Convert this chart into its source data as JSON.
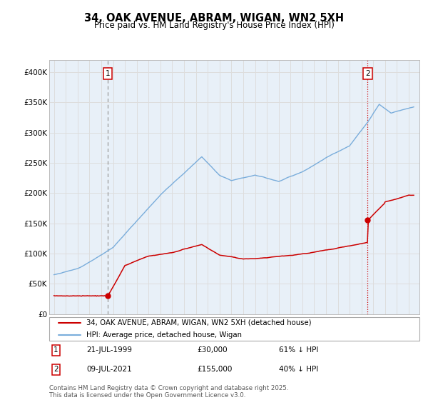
{
  "title_line1": "34, OAK AVENUE, ABRAM, WIGAN, WN2 5XH",
  "title_line2": "Price paid vs. HM Land Registry's House Price Index (HPI)",
  "ylim": [
    0,
    420000
  ],
  "yticks": [
    0,
    50000,
    100000,
    150000,
    200000,
    250000,
    300000,
    350000,
    400000
  ],
  "ytick_labels": [
    "£0",
    "£50K",
    "£100K",
    "£150K",
    "£200K",
    "£250K",
    "£300K",
    "£350K",
    "£400K"
  ],
  "legend_entry1": "34, OAK AVENUE, ABRAM, WIGAN, WN2 5XH (detached house)",
  "legend_entry2": "HPI: Average price, detached house, Wigan",
  "annotation1_date": "21-JUL-1999",
  "annotation1_price": "£30,000",
  "annotation1_pct": "61% ↓ HPI",
  "annotation2_date": "09-JUL-2021",
  "annotation2_price": "£155,000",
  "annotation2_pct": "40% ↓ HPI",
  "footnote": "Contains HM Land Registry data © Crown copyright and database right 2025.\nThis data is licensed under the Open Government Licence v3.0.",
  "sale1_year": 1999.55,
  "sale1_price": 30000,
  "sale2_year": 2021.52,
  "sale2_price": 155000,
  "line_color_property": "#cc0000",
  "line_color_hpi": "#7aaddb",
  "vline1_color": "#999999",
  "vline2_color": "#cc0000",
  "grid_color": "#dddddd",
  "background_color": "#ffffff",
  "chart_bg_color": "#e8f0f8"
}
